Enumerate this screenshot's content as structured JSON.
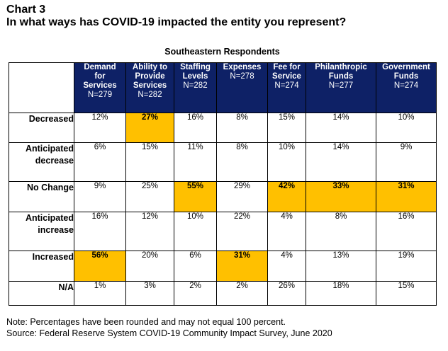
{
  "title_line1": "Chart 3",
  "title_line2": "In what ways has COVID-19 impacted the entity you represent?",
  "colors": {
    "header_bg": "#0e2166",
    "highlight": "#ffc000"
  },
  "chart_data": {
    "type": "table",
    "title": "Southeastern Respondents",
    "columns": [
      {
        "label": "Demand\nfor\nServices",
        "n": "N=279"
      },
      {
        "label": "Ability to\nProvide\nServices",
        "n": "N=282"
      },
      {
        "label": "Staffing\nLevels",
        "n": "N=282"
      },
      {
        "label": "Expenses",
        "n": "N=278"
      },
      {
        "label": "Fee for\nService",
        "n": "N=274"
      },
      {
        "label": "Philanthropic\nFunds",
        "n": "N=277"
      },
      {
        "label": "Government\nFunds",
        "n": "N=274"
      }
    ],
    "rows": [
      {
        "label": "Decreased",
        "values": [
          "12%",
          "27%",
          "16%",
          "8%",
          "15%",
          "14%",
          "10%"
        ],
        "highlight": [
          1
        ]
      },
      {
        "label": "Anticipated\ndecrease",
        "values": [
          "6%",
          "15%",
          "11%",
          "8%",
          "10%",
          "14%",
          "9%"
        ],
        "highlight": []
      },
      {
        "label": "No Change",
        "values": [
          "9%",
          "25%",
          "55%",
          "29%",
          "42%",
          "33%",
          "31%"
        ],
        "highlight": [
          2,
          4,
          5,
          6
        ]
      },
      {
        "label": "Anticipated\nincrease",
        "values": [
          "16%",
          "12%",
          "10%",
          "22%",
          "4%",
          "8%",
          "16%"
        ],
        "highlight": []
      },
      {
        "label": "Increased",
        "values": [
          "56%",
          "20%",
          "6%",
          "31%",
          "4%",
          "13%",
          "19%"
        ],
        "highlight": [
          0,
          3
        ]
      },
      {
        "label": "N/A",
        "values": [
          "1%",
          "3%",
          "2%",
          "2%",
          "26%",
          "18%",
          "15%"
        ],
        "highlight": []
      }
    ]
  },
  "notes": [
    "Note: Percentages have been rounded and may not equal 100 percent.",
    "Source: Federal Reserve System COVID-19 Community Impact Survey, June 2020"
  ]
}
